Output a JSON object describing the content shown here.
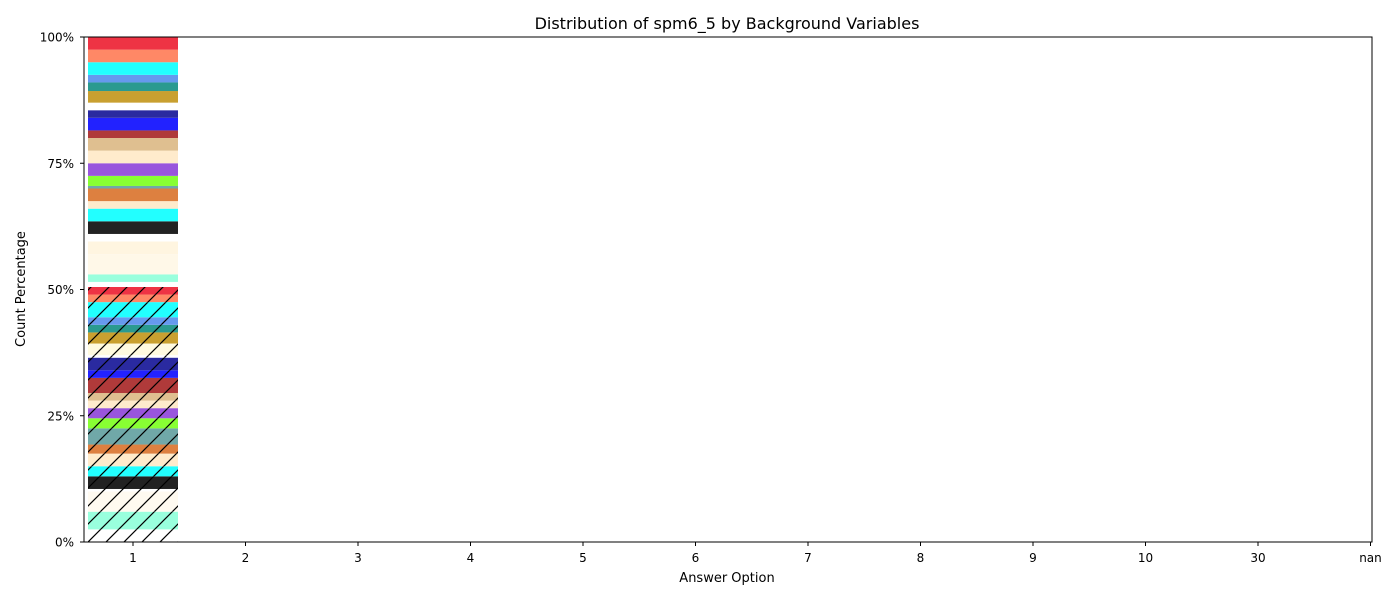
{
  "chart_data": {
    "type": "bar",
    "title": "Distribution of spm6_5 by Background Variables",
    "xlabel": "Answer Option",
    "ylabel": "Count Percentage",
    "categories": [
      "1",
      "2",
      "3",
      "4",
      "5",
      "6",
      "7",
      "8",
      "9",
      "10",
      "30",
      "nan"
    ],
    "y_ticks": [
      "0%",
      "25%",
      "50%",
      "75%",
      "100%"
    ],
    "ylim": [
      0,
      100
    ],
    "grid": false,
    "legend": "none",
    "stacked": true,
    "segments_at_category": "1",
    "segments": [
      {
        "value": 2.5,
        "color": "#ffffff",
        "hatch": true
      },
      {
        "value": 3.5,
        "color": "#99ffdd",
        "hatch": true
      },
      {
        "value": 4.0,
        "color": "#fffaf0",
        "hatch": true
      },
      {
        "value": 0.5,
        "color": "#ffffff",
        "hatch": true
      },
      {
        "value": 2.5,
        "color": "#222222",
        "hatch": true
      },
      {
        "value": 2.0,
        "color": "#22ffff",
        "hatch": true
      },
      {
        "value": 2.5,
        "color": "#ffebcc",
        "hatch": true
      },
      {
        "value": 1.8,
        "color": "#dd8040",
        "hatch": true
      },
      {
        "value": 3.2,
        "color": "#70a8a8",
        "hatch": true
      },
      {
        "value": 2.0,
        "color": "#88ff33",
        "hatch": true
      },
      {
        "value": 2.0,
        "color": "#9955dd",
        "hatch": true
      },
      {
        "value": 1.5,
        "color": "#ffebcc",
        "hatch": true
      },
      {
        "value": 1.5,
        "color": "#dfbf90",
        "hatch": true
      },
      {
        "value": 3.0,
        "color": "#b03a3a",
        "hatch": true
      },
      {
        "value": 1.5,
        "color": "#2222ff",
        "hatch": true
      },
      {
        "value": 2.5,
        "color": "#2a2aa0",
        "hatch": true
      },
      {
        "value": 0.5,
        "color": "#ffffff",
        "hatch": true
      },
      {
        "value": 2.3,
        "color": "#fffae0",
        "hatch": true
      },
      {
        "value": 2.2,
        "color": "#c9a030",
        "hatch": true
      },
      {
        "value": 1.5,
        "color": "#2a9a90",
        "hatch": true
      },
      {
        "value": 1.5,
        "color": "#6699ee",
        "hatch": true
      },
      {
        "value": 3.0,
        "color": "#22ffff",
        "hatch": true
      },
      {
        "value": 1.5,
        "color": "#ff8866",
        "hatch": true
      },
      {
        "value": 1.5,
        "color": "#ee3344",
        "hatch": true
      },
      {
        "value": 1.0,
        "color": "#ffffff",
        "hatch": false
      },
      {
        "value": 1.5,
        "color": "#99ffdd",
        "hatch": false
      },
      {
        "value": 4.0,
        "color": "#fff8e8",
        "hatch": false
      },
      {
        "value": 2.5,
        "color": "#fff5e0",
        "hatch": false
      },
      {
        "value": 1.5,
        "color": "#ffffff",
        "hatch": false
      },
      {
        "value": 2.5,
        "color": "#222222",
        "hatch": false
      },
      {
        "value": 2.5,
        "color": "#22ffff",
        "hatch": false
      },
      {
        "value": 1.5,
        "color": "#ffebcc",
        "hatch": false
      },
      {
        "value": 2.5,
        "color": "#dd8040",
        "hatch": false
      },
      {
        "value": 0.5,
        "color": "#70a8a8",
        "hatch": false
      },
      {
        "value": 2.0,
        "color": "#88ff33",
        "hatch": false
      },
      {
        "value": 2.5,
        "color": "#9955dd",
        "hatch": false
      },
      {
        "value": 2.5,
        "color": "#ffebcc",
        "hatch": false
      },
      {
        "value": 2.5,
        "color": "#dfbf90",
        "hatch": false
      },
      {
        "value": 1.5,
        "color": "#b03a3a",
        "hatch": false
      },
      {
        "value": 2.5,
        "color": "#2222ff",
        "hatch": false
      },
      {
        "value": 1.5,
        "color": "#2a2aa0",
        "hatch": false
      },
      {
        "value": 1.5,
        "color": "#ffffff",
        "hatch": false
      },
      {
        "value": 2.3,
        "color": "#c9a030",
        "hatch": false
      },
      {
        "value": 1.7,
        "color": "#2a9a90",
        "hatch": false
      },
      {
        "value": 1.5,
        "color": "#6699ee",
        "hatch": false
      },
      {
        "value": 2.5,
        "color": "#22ffff",
        "hatch": false
      },
      {
        "value": 2.5,
        "color": "#ff8866",
        "hatch": false
      },
      {
        "value": 2.5,
        "color": "#ee3344",
        "hatch": false
      }
    ]
  }
}
